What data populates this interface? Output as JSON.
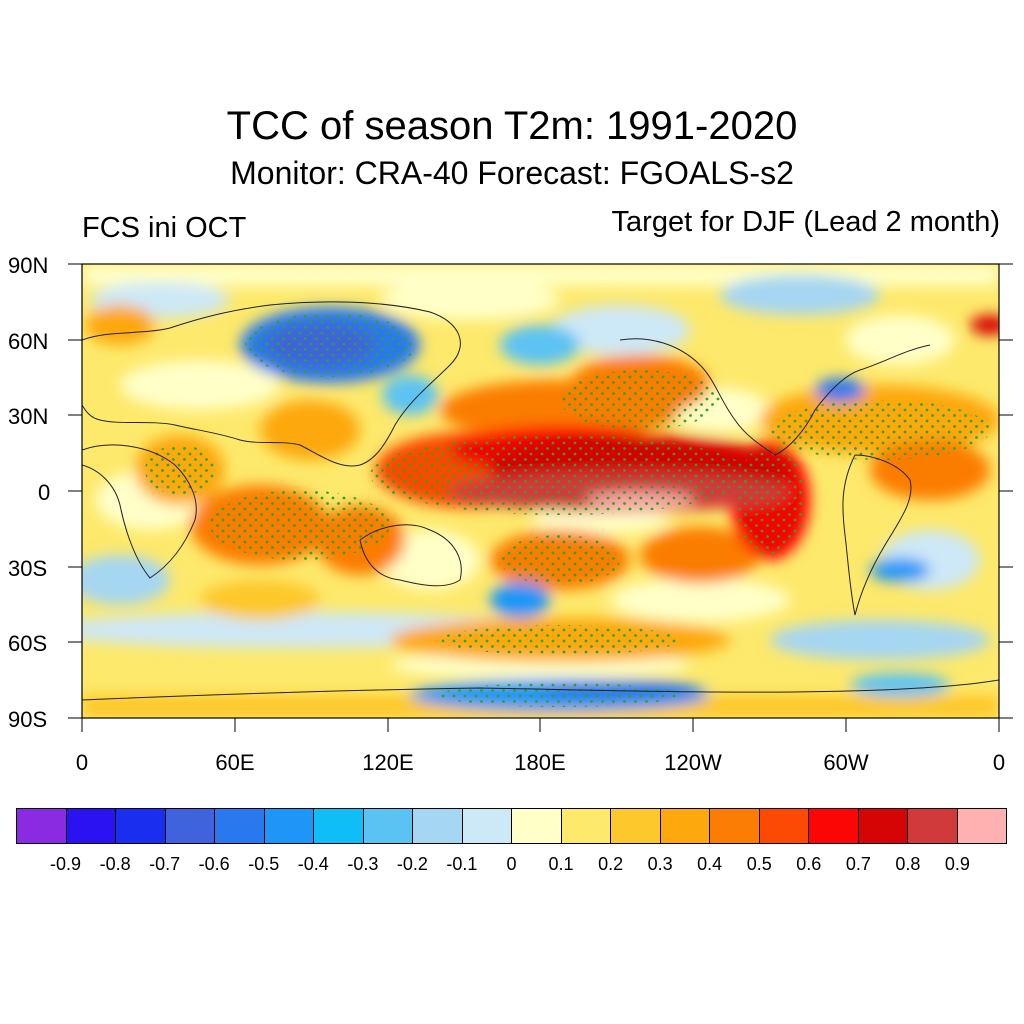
{
  "figure": {
    "title": "TCC of season T2m: 1991-2020",
    "subtitle": "Monitor: CRA-40   Forecast: FGOALS-s2",
    "left_label": "FCS ini OCT",
    "right_label": "Target for DJF (Lead 2 month)"
  },
  "map": {
    "projection": "cylindrical equidistant",
    "lat_range": [
      -90,
      90
    ],
    "lon_range": [
      0,
      360
    ],
    "lat_labels": [
      "90N",
      "60N",
      "30N",
      "0",
      "30S",
      "60S",
      "90S"
    ],
    "lon_labels": [
      "0",
      "60E",
      "120E",
      "180E",
      "120W",
      "60W",
      "0"
    ],
    "stipple_color": "#22aa22",
    "coastline_color": "#222222"
  },
  "colorbar": {
    "labels": [
      "-0.9",
      "-0.8",
      "-0.7",
      "-0.6",
      "-0.5",
      "-0.4",
      "-0.3",
      "-0.2",
      "-0.1",
      "0",
      "0.1",
      "0.2",
      "0.3",
      "0.4",
      "0.5",
      "0.6",
      "0.7",
      "0.8",
      "0.9"
    ],
    "colors": [
      "#8a2be2",
      "#2a12f2",
      "#1a2ef0",
      "#3f63dc",
      "#2a78ee",
      "#1e96f8",
      "#0fbef6",
      "#5bc3f3",
      "#a5d6f2",
      "#cde8f7",
      "#ffffc8",
      "#fde96b",
      "#fdc82c",
      "#fda80d",
      "#fb7d05",
      "#fc4a04",
      "#fb0505",
      "#d60505",
      "#d13a3a",
      "#ffb0b0"
    ]
  }
}
